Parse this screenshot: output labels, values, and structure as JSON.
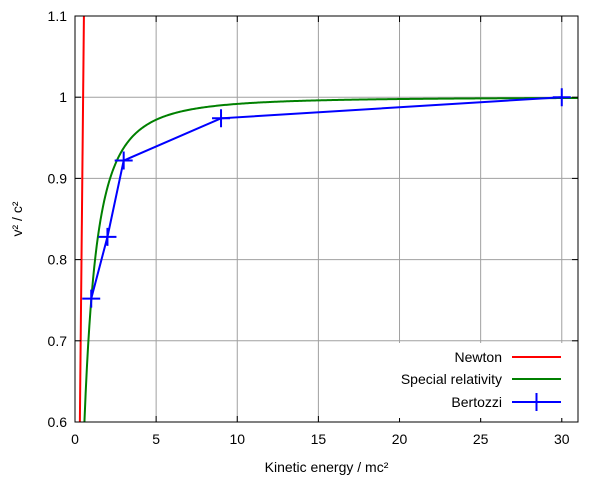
{
  "chart_data": {
    "type": "line",
    "title": "",
    "xlabel": "Kinetic energy / mc²",
    "ylabel": "v² / c²",
    "xlim": [
      0,
      31
    ],
    "ylim": [
      0.6,
      1.1
    ],
    "xticks": [
      0,
      5,
      10,
      15,
      20,
      25,
      30
    ],
    "xtick_labels": [
      "0",
      "5",
      "10",
      "15",
      "20",
      "25",
      "30"
    ],
    "yticks": [
      0.6,
      0.7,
      0.8,
      0.9,
      1.0,
      1.1
    ],
    "ytick_labels": [
      "0.6",
      "0.7",
      "0.8",
      "0.9",
      "1",
      "1.1"
    ],
    "grid": true,
    "legend_position": "bottom-right",
    "series": [
      {
        "name": "Newton",
        "color": "#ff0000",
        "kind": "function",
        "formula": "y = 2x",
        "x_range": [
          0.3,
          0.55
        ]
      },
      {
        "name": "Special relativity",
        "color": "#008000",
        "kind": "function",
        "formula": "y = 1 - 1/(1+x)^2",
        "x_range": [
          0.58,
          31
        ]
      },
      {
        "name": "Bertozzi",
        "color": "#0000ff",
        "kind": "points",
        "marker": "plus",
        "x": [
          1.0,
          2.0,
          3.0,
          9.0,
          30.0
        ],
        "y": [
          0.752,
          0.828,
          0.922,
          0.974,
          1.0
        ]
      }
    ]
  }
}
